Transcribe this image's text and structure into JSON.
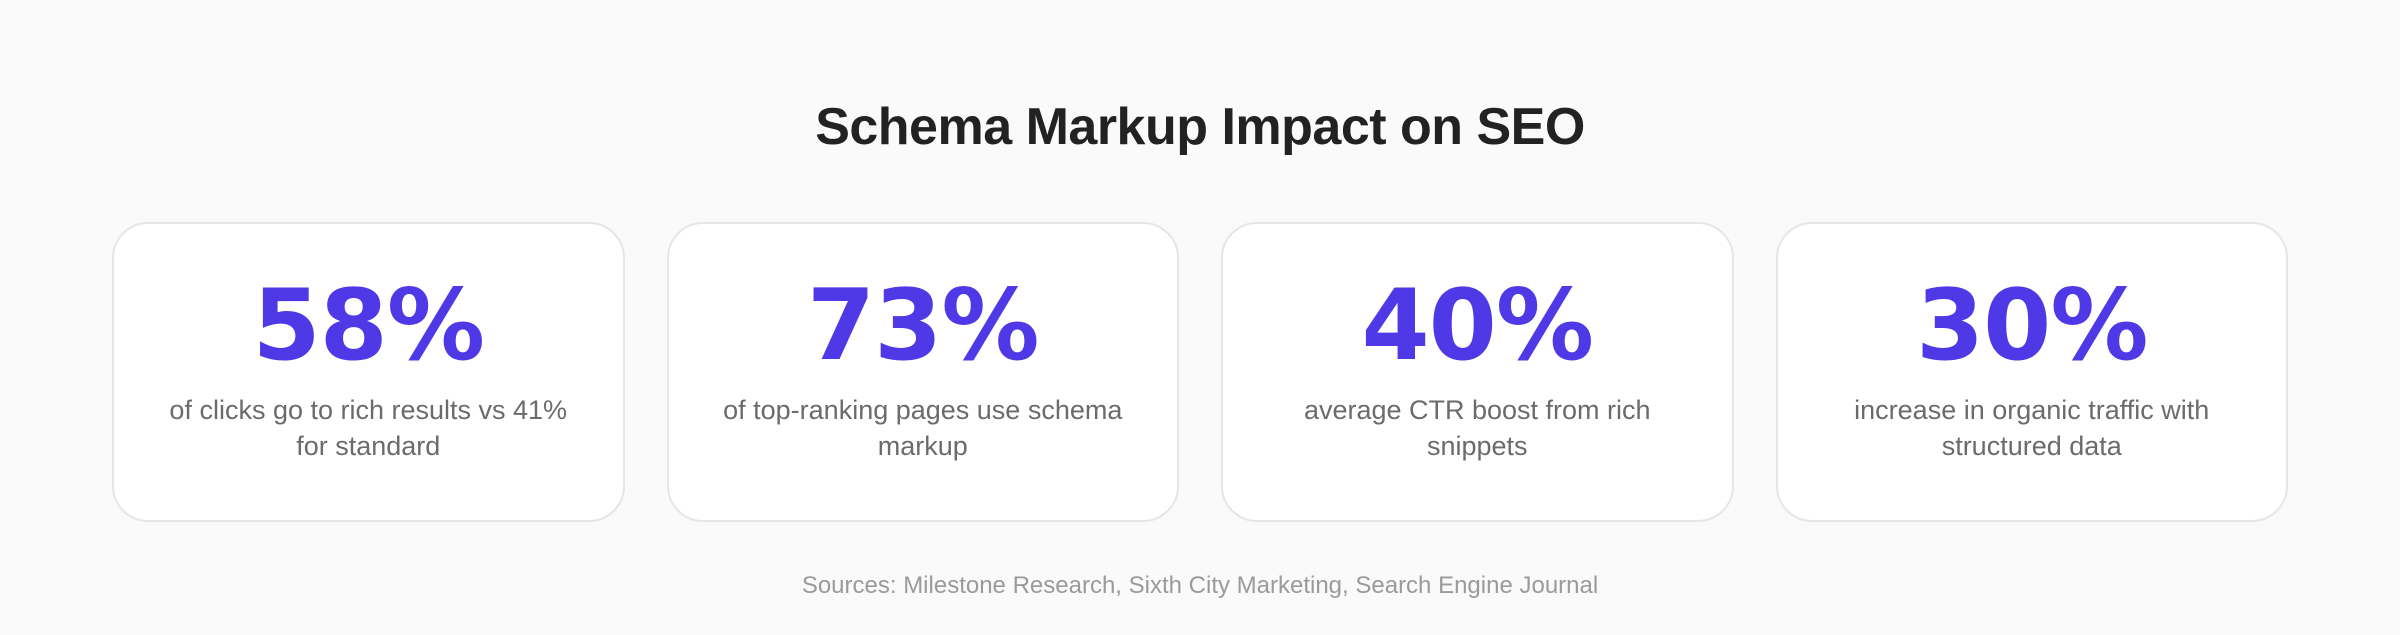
{
  "title": "Schema Markup Impact on SEO",
  "stats": [
    {
      "value": "58%",
      "description": "of clicks go to rich results vs 41% for standard"
    },
    {
      "value": "73%",
      "description": "of top-ranking pages use schema markup"
    },
    {
      "value": "40%",
      "description": "average CTR boost from rich snippets"
    },
    {
      "value": "30%",
      "description": "increase in organic traffic with structured data"
    }
  ],
  "sources": "Sources: Milestone Research, Sixth City Marketing, Search Engine Journal",
  "colors": {
    "accent": "#4f38e6",
    "background": "#fafafa",
    "title": "#222222",
    "description": "#6b6b6b",
    "sources": "#9a9a9a"
  }
}
